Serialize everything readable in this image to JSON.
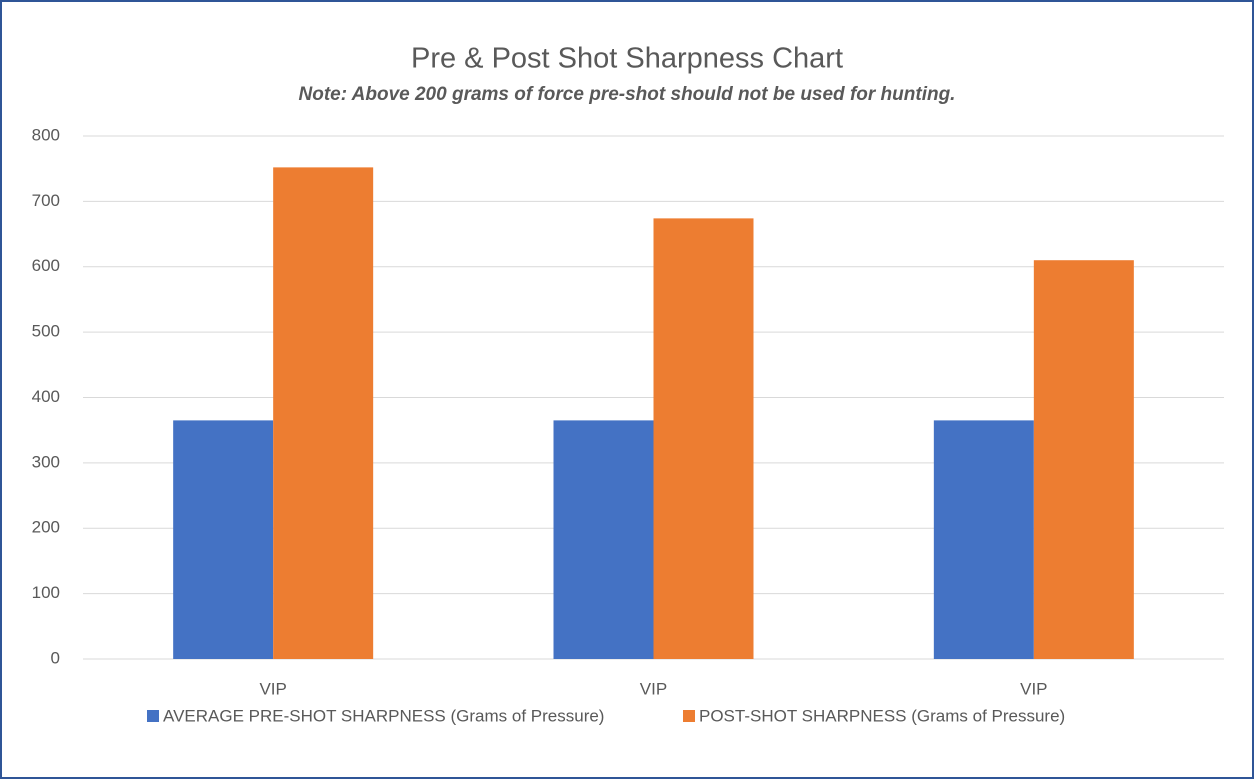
{
  "chart_data": {
    "type": "bar",
    "title": "Pre & Post Shot Sharpness Chart",
    "subtitle": "Note: Above 200 grams of force pre-shot should not be used for hunting.",
    "categories": [
      "VIP",
      "VIP",
      "VIP"
    ],
    "series": [
      {
        "name": "AVERAGE PRE-SHOT SHARPNESS (Grams of Pressure)",
        "color": "#4472c4",
        "values": [
          365,
          365,
          365
        ]
      },
      {
        "name": "POST-SHOT SHARPNESS (Grams of Pressure)",
        "color": "#ed7d31",
        "values": [
          752,
          674,
          610
        ]
      }
    ],
    "ylim": [
      0,
      800
    ],
    "yticks": [
      0,
      100,
      200,
      300,
      400,
      500,
      600,
      700,
      800
    ],
    "grid": true,
    "legend": "bottom"
  }
}
